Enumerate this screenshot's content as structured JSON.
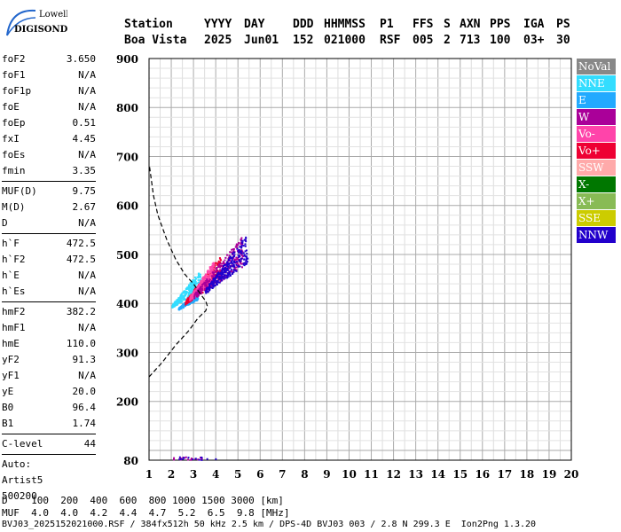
{
  "logo": {
    "line1": "Lowell",
    "line2": "DIGISONDE"
  },
  "header": {
    "row1": [
      "Station",
      "YYYY",
      "DAY",
      "DDD",
      "HHMMSS",
      "P1",
      "FFS",
      "S",
      "AXN",
      "PPS",
      "IGA",
      "PS"
    ],
    "row2": [
      "Boa Vista",
      "2025",
      "Jun01",
      "152",
      "021000",
      "RSF",
      "005",
      "2",
      "713",
      "100",
      "03+",
      "30"
    ]
  },
  "params": {
    "group1": [
      [
        "foF2",
        "3.650"
      ],
      [
        "foF1",
        "N/A"
      ],
      [
        "foF1p",
        "N/A"
      ],
      [
        "foE",
        "N/A"
      ],
      [
        "foEp",
        "0.51"
      ],
      [
        "fxI",
        "4.45"
      ],
      [
        "foEs",
        "N/A"
      ],
      [
        "fmin",
        "3.35"
      ]
    ],
    "group2": [
      [
        "MUF(D)",
        "9.75"
      ],
      [
        "M(D)",
        "2.67"
      ],
      [
        "D",
        "N/A"
      ]
    ],
    "group3": [
      [
        "h`F",
        "472.5"
      ],
      [
        "h`F2",
        "472.5"
      ],
      [
        "h`E",
        "N/A"
      ],
      [
        "h`Es",
        "N/A"
      ]
    ],
    "group4": [
      [
        "hmF2",
        "382.2"
      ],
      [
        "hmF1",
        "N/A"
      ],
      [
        "hmE",
        "110.0"
      ],
      [
        "yF2",
        "91.3"
      ],
      [
        "yF1",
        "N/A"
      ],
      [
        "yE",
        "20.0"
      ],
      [
        "B0",
        "96.4"
      ],
      [
        "B1",
        "1.74"
      ]
    ],
    "clevel": [
      "C-level",
      "44"
    ],
    "auto": [
      "Auto:",
      "Artist5",
      "500200"
    ]
  },
  "footer": {
    "d_line": "D    100  200  400  600  800 1000 1500 3000 [km]",
    "muf_line": "MUF  4.0  4.0  4.2  4.4  4.7  5.2  6.5  9.8 [MHz]",
    "file_line": "BVJ03_2025152021000.RSF / 384fx512h 50 kHz 2.5 km / DPS-4D BVJ03 003 / 2.8 N 299.3 E  Ion2Png 1.3.20"
  },
  "legend": [
    {
      "label": "NoVal",
      "color": "#888888"
    },
    {
      "label": "NNE",
      "color": "#33ddff"
    },
    {
      "label": "E",
      "color": "#22aaff"
    },
    {
      "label": "W",
      "color": "#aa0099"
    },
    {
      "label": "Vo-",
      "color": "#ff44aa"
    },
    {
      "label": "Vo+",
      "color": "#ee0033"
    },
    {
      "label": "SSW",
      "color": "#ffaaaa"
    },
    {
      "label": "X-",
      "color": "#007700"
    },
    {
      "label": "X+",
      "color": "#88bb55"
    },
    {
      "label": "SSE",
      "color": "#cccc00"
    },
    {
      "label": "NNW",
      "color": "#2200cc"
    }
  ],
  "chart_data": {
    "type": "scatter",
    "xlabel": "",
    "ylabel": "",
    "xlim": [
      1,
      20
    ],
    "ylim": [
      80,
      900
    ],
    "x_ticks": [
      1,
      2,
      3,
      4,
      5,
      6,
      7,
      8,
      9,
      10,
      11,
      12,
      13,
      14,
      15,
      16,
      17,
      18,
      19,
      20
    ],
    "y_ticks": [
      80,
      200,
      300,
      400,
      500,
      600,
      700,
      800,
      900
    ],
    "grid": true,
    "clusters": [
      {
        "name": "NNE",
        "x_range": [
          2.0,
          3.3
        ],
        "y_range": [
          385,
          470
        ]
      },
      {
        "name": "E",
        "x_range": [
          2.3,
          3.2
        ],
        "y_range": [
          385,
          430
        ]
      },
      {
        "name": "Vo+",
        "x_range": [
          2.6,
          4.2
        ],
        "y_range": [
          390,
          500
        ]
      },
      {
        "name": "Vo-",
        "x_range": [
          2.8,
          3.9
        ],
        "y_range": [
          400,
          490
        ]
      },
      {
        "name": "W",
        "x_range": [
          3.0,
          5.2
        ],
        "y_range": [
          400,
          540
        ]
      },
      {
        "name": "NNW",
        "x_range": [
          3.5,
          5.4
        ],
        "y_range": [
          410,
          545
        ]
      }
    ],
    "profile_curve": [
      [
        1.0,
        250
      ],
      [
        1.6,
        280
      ],
      [
        2.2,
        315
      ],
      [
        2.8,
        345
      ],
      [
        3.2,
        370
      ],
      [
        3.55,
        385
      ],
      [
        3.62,
        395
      ],
      [
        3.55,
        405
      ],
      [
        3.3,
        420
      ],
      [
        3.0,
        440
      ],
      [
        2.6,
        460
      ],
      [
        2.2,
        490
      ],
      [
        1.8,
        530
      ],
      [
        1.4,
        580
      ],
      [
        1.2,
        620
      ],
      [
        1.02,
        680
      ]
    ]
  }
}
